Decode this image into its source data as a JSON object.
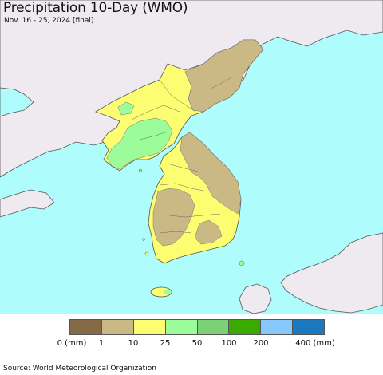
{
  "header": {
    "title": "Precipitation 10-Day (WMO)",
    "subtitle": "Nov. 16 - 25, 2024 [final]"
  },
  "map": {
    "ocean_color": "#aefcfb",
    "foreign_land_color": "#eeeaf0",
    "border_color": "#555555"
  },
  "legend": {
    "colors": [
      "#856a48",
      "#cbb985",
      "#fdfd72",
      "#9bfc99",
      "#7bd175",
      "#3aaa00",
      "#85c8fb",
      "#1c79bf"
    ],
    "labels": [
      "0 (mm)",
      "1",
      "10",
      "25",
      "50",
      "100",
      "200",
      "400 (mm)"
    ]
  },
  "footer": {
    "source": "Source: World Meteorological Organization"
  }
}
